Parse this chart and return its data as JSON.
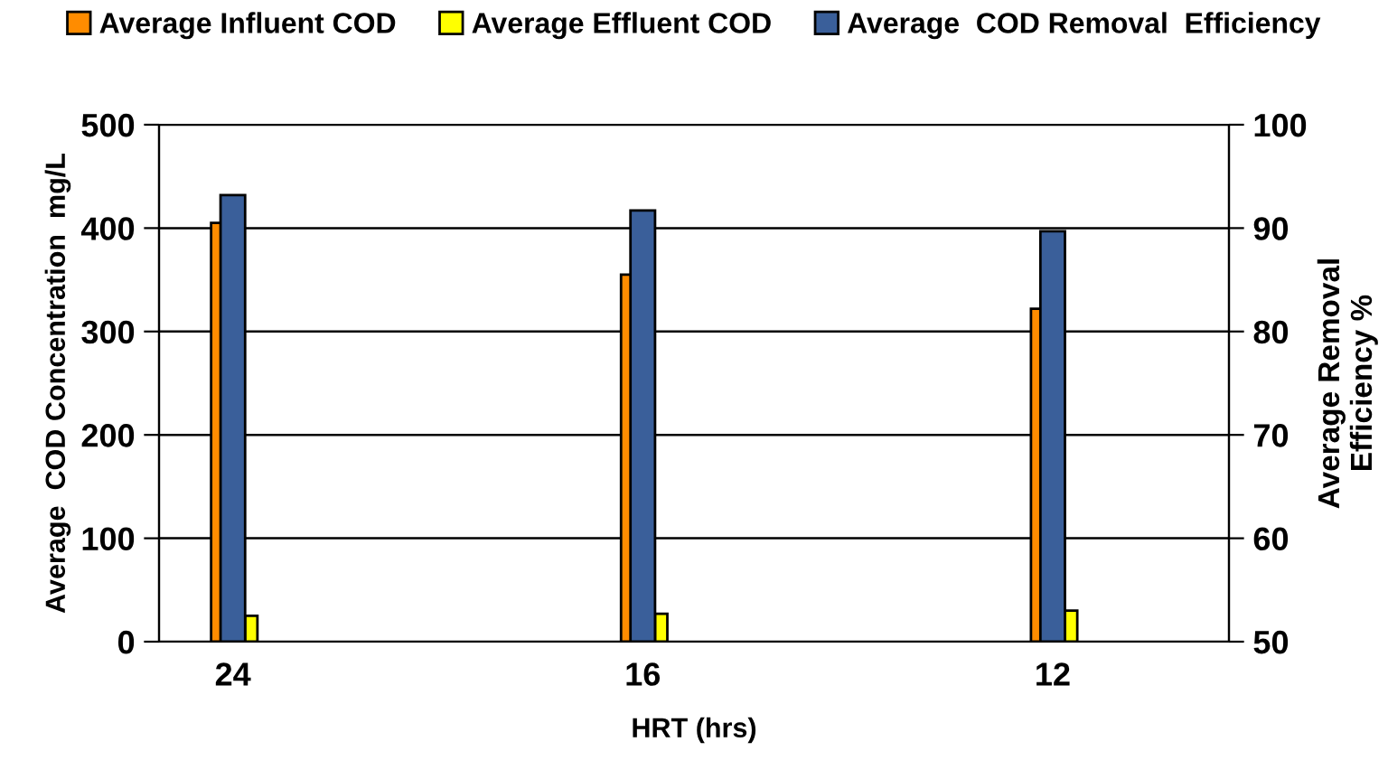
{
  "chart_data": {
    "type": "bar",
    "xlabel": "HRT (hrs)",
    "ylabel": "Average  COD Concentration  mg/L",
    "y2label": "Average Removal\nEfficiency %",
    "categories": [
      "24",
      "16",
      "12"
    ],
    "series": [
      {
        "name": "Average Influent COD",
        "color": "#ff8c00",
        "values": [
          405,
          355,
          322
        ]
      },
      {
        "name": "Average Effluent COD",
        "color": "#ffff00",
        "values": [
          25,
          27,
          30
        ]
      },
      {
        "name": "Average  COD Removal  Efficiency",
        "color": "#3a5f9a",
        "values": [
          93.2,
          91.7,
          89.7
        ],
        "axis": "y2"
      }
    ],
    "ylim": [
      0,
      500
    ],
    "yticks": [
      0,
      100,
      200,
      300,
      400,
      500
    ],
    "y2lim": [
      50,
      100
    ],
    "y2ticks": [
      50,
      60,
      70,
      80,
      90,
      100
    ],
    "grid": "y",
    "legend": "top"
  }
}
